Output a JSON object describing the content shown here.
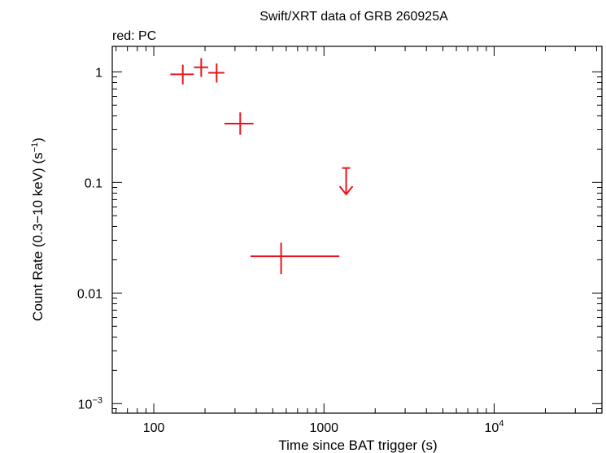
{
  "chart_data": {
    "type": "scatter",
    "title": "Swift/XRT data of GRB 260925A",
    "subtitle": "red: PC",
    "xlabel": "Time since BAT trigger (s)",
    "ylabel_main": "Count Rate (0.3−10 keV) (s",
    "ylabel_sup": "−1",
    "ylabel_end": ")",
    "xscale": "log",
    "yscale": "log",
    "xlim": [
      57,
      43000
    ],
    "ylim": [
      0.00082,
      1.7
    ],
    "x_ticks": [
      {
        "value": 100,
        "label": "100",
        "sup": ""
      },
      {
        "value": 1000,
        "label": "1000",
        "sup": ""
      },
      {
        "value": 10000,
        "label": "10",
        "sup": "4"
      }
    ],
    "y_ticks": [
      {
        "value": 1,
        "label": "1",
        "sup": ""
      },
      {
        "value": 0.1,
        "label": "0.1",
        "sup": ""
      },
      {
        "value": 0.01,
        "label": "0.01",
        "sup": ""
      },
      {
        "value": 0.001,
        "label": "10",
        "sup": "−3"
      }
    ],
    "series": [
      {
        "mode": "PC",
        "color": "#e8141c",
        "points": [
          {
            "x": 148,
            "x_lo": 125,
            "x_hi": 172,
            "y": 0.95,
            "y_lo": 0.77,
            "y_hi": 1.16
          },
          {
            "x": 190,
            "x_lo": 172,
            "x_hi": 209,
            "y": 1.1,
            "y_lo": 0.9,
            "y_hi": 1.33
          },
          {
            "x": 234,
            "x_lo": 209,
            "x_hi": 260,
            "y": 0.98,
            "y_lo": 0.8,
            "y_hi": 1.19
          },
          {
            "x": 322,
            "x_lo": 260,
            "x_hi": 385,
            "y": 0.34,
            "y_lo": 0.27,
            "y_hi": 0.43
          },
          {
            "x": 560,
            "x_lo": 370,
            "x_hi": 1230,
            "y": 0.0215,
            "y_lo": 0.0148,
            "y_hi": 0.0285
          }
        ],
        "upper_limits": [
          {
            "x": 1350,
            "y": 0.135,
            "y_arrow": 0.078
          }
        ]
      }
    ]
  }
}
